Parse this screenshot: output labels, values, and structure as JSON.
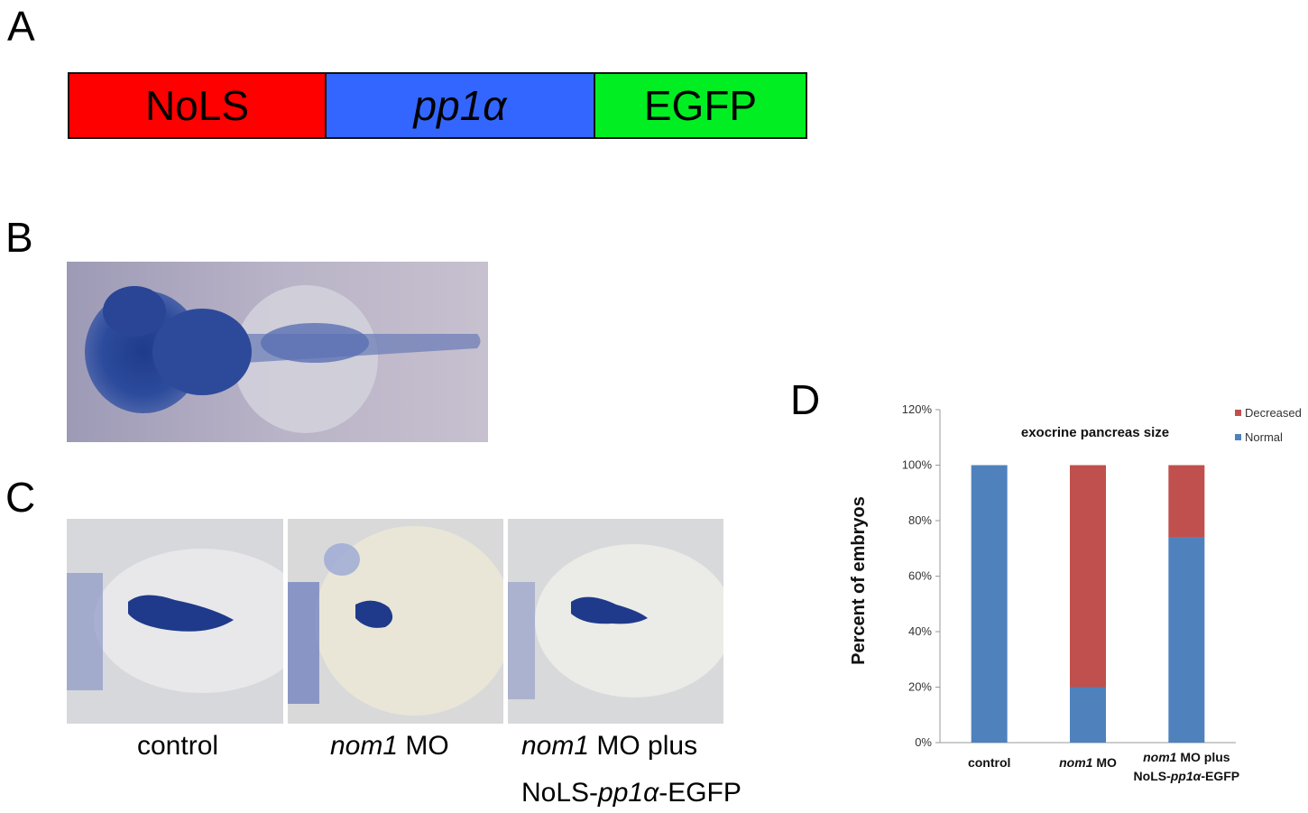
{
  "panels": {
    "a": "A",
    "b": "B",
    "c": "C",
    "d": "D"
  },
  "construct": [
    {
      "label": "NoLS",
      "italic": false,
      "color": "#ff0000"
    },
    {
      "label": "pp1α",
      "italic": true,
      "color": "#3366ff"
    },
    {
      "label": "EGFP",
      "italic": false,
      "color": "#00ee22"
    }
  ],
  "stain_color": "#1f3a8a",
  "captions": {
    "control": "control",
    "nom1_italic": "nom1",
    "mo": " MO",
    "mo_plus": " MO plus",
    "nols_prefix": "NoLS-",
    "pp1a": "pp1α",
    "egfp_suffix": "-EGFP"
  },
  "chart_data": {
    "type": "bar",
    "stacked": true,
    "title": "exocrine pancreas size",
    "ylabel": "Percent  of embryos",
    "ylim": [
      0,
      120
    ],
    "yticks": [
      "0%",
      "20%",
      "40%",
      "60%",
      "80%",
      "100%",
      "120%"
    ],
    "categories": [
      {
        "italic": "",
        "rest": "control",
        "line2_prefix": "",
        "line2_italic": "",
        "line2_suffix": ""
      },
      {
        "italic": "nom1",
        "rest": " MO",
        "line2_prefix": "",
        "line2_italic": "",
        "line2_suffix": ""
      },
      {
        "italic": "nom1",
        "rest": " MO plus",
        "line2_prefix": "NoLS-",
        "line2_italic": "pp1α",
        "line2_suffix": "-EGFP"
      }
    ],
    "series": [
      {
        "name": "Normal",
        "color": "#4f81bd",
        "values": [
          100,
          20,
          74
        ]
      },
      {
        "name": "Decreased",
        "color": "#c0504d",
        "values": [
          0,
          80,
          26
        ]
      }
    ],
    "legend_position": "top-right"
  }
}
